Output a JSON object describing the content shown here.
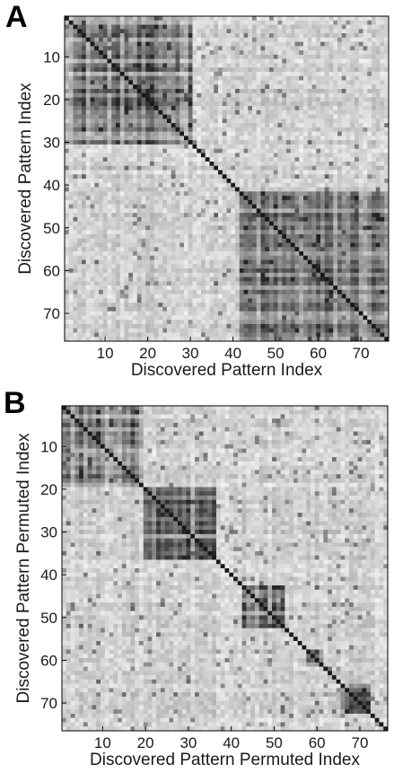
{
  "panels": {
    "a_letter": "A",
    "b_letter": "B"
  },
  "chart_data": [
    {
      "type": "heatmap",
      "panel": "A",
      "title": "",
      "xlabel": "Discovered Pattern Index",
      "ylabel": "Discovered Pattern Index",
      "n": 76,
      "xlim": [
        1,
        76
      ],
      "ylim": [
        1,
        76
      ],
      "xticks": [
        10,
        20,
        30,
        40,
        50,
        60,
        70
      ],
      "yticks": [
        10,
        20,
        30,
        40,
        50,
        60,
        70
      ],
      "colormap": "gray (dark = high similarity, white = low)",
      "diagonal": "dark",
      "block_structure": [
        [
          1,
          30
        ],
        [
          42,
          76
        ]
      ]
    },
    {
      "type": "heatmap",
      "panel": "B",
      "title": "",
      "xlabel": "Discovered Pattern Permuted Index",
      "ylabel": "Discovered Pattern Permuted Index",
      "n": 76,
      "xlim": [
        1,
        76
      ],
      "ylim": [
        1,
        76
      ],
      "xticks": [
        10,
        20,
        30,
        40,
        50,
        60,
        70
      ],
      "yticks": [
        10,
        20,
        30,
        40,
        50,
        60,
        70
      ],
      "colormap": "gray (dark = high similarity, white = low)",
      "diagonal": "dark",
      "block_structure": [
        [
          1,
          19
        ],
        [
          20,
          36
        ],
        [
          43,
          52
        ],
        [
          58,
          61
        ],
        [
          66,
          72
        ]
      ]
    }
  ]
}
